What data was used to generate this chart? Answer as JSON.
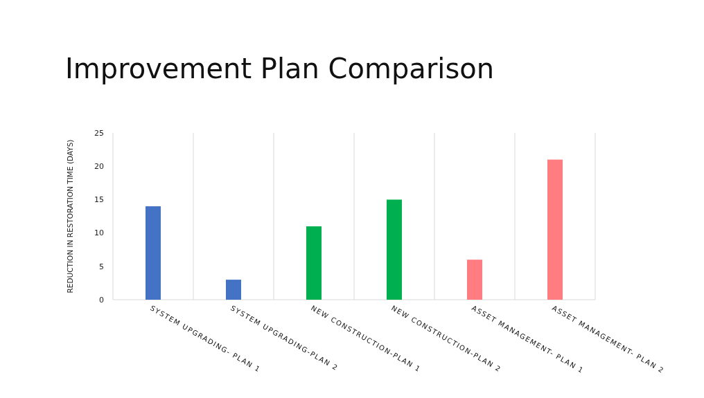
{
  "chart_data": {
    "type": "bar",
    "title": "Improvement Plan Comparison",
    "ylabel": "REDUCTION IN RESTORATION TIME (DAYS)",
    "categories": [
      "SYSTEM UPGRADING- PLAN 1",
      "SYSTEM UPGRADING-PLAN 2",
      "NEW CONSTRUCTION-PLAN 1",
      "NEW CONSTRUCTION-PLAN 2",
      "ASSET MANAGEMENT- PLAN 1",
      "ASSET MANAGEMENT- PLAN 2"
    ],
    "values": [
      14,
      3,
      11,
      15,
      6,
      21
    ],
    "colors": [
      "#4472c4",
      "#4472c4",
      "#00b050",
      "#00b050",
      "#ff7c80",
      "#ff7c80"
    ],
    "ylim": [
      0,
      25
    ],
    "yticks": [
      0,
      5,
      10,
      15,
      20,
      25
    ],
    "grid": "x"
  }
}
